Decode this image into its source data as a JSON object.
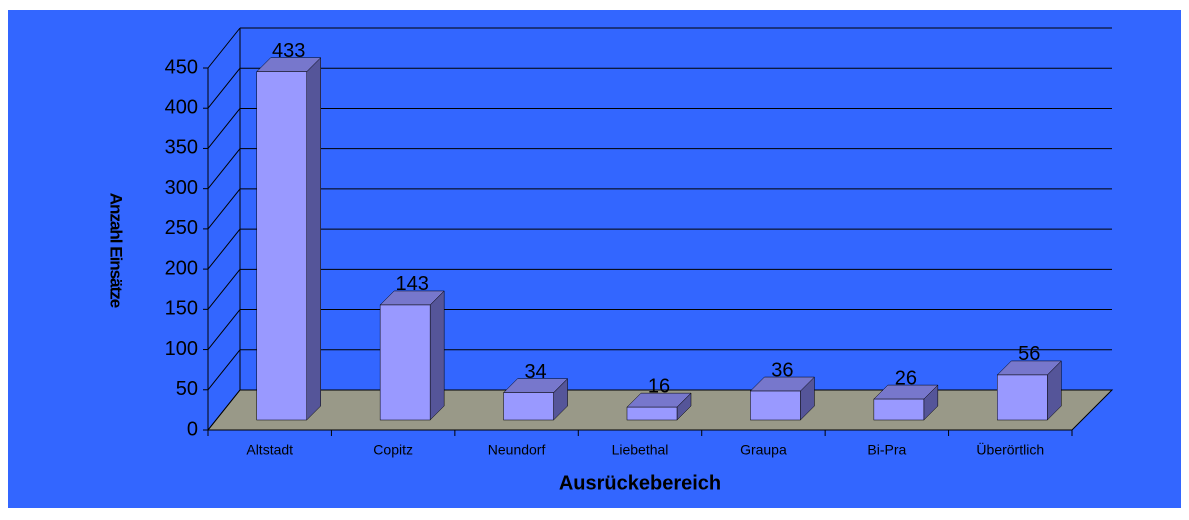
{
  "chart_data": {
    "type": "bar3d",
    "y_label": "Anzahl Einsätze",
    "x_label": "Ausrückebereich",
    "categories": [
      "Altstadt",
      "Copitz",
      "Neundorf",
      "Liebethal",
      "Graupa",
      "Bi-Pra",
      "Überörtlich"
    ],
    "values": [
      433,
      143,
      34,
      16,
      36,
      26,
      56
    ],
    "color": "#9999ff",
    "ylim": [
      0,
      450
    ],
    "yticks": [
      0,
      50,
      100,
      150,
      200,
      250,
      300,
      350,
      400,
      450
    ],
    "grid": true
  }
}
